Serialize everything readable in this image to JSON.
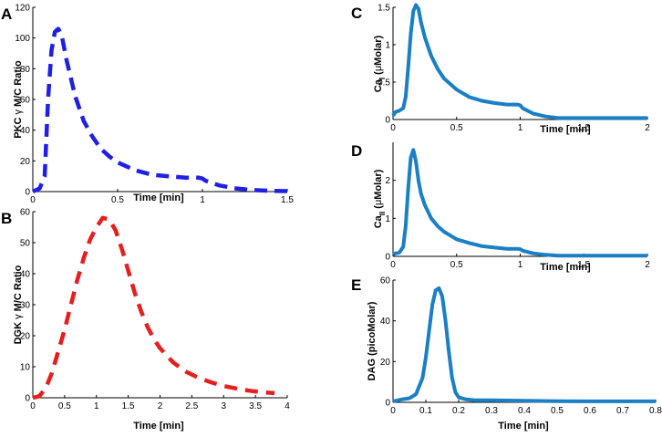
{
  "colors": {
    "blue_dash": "#1f1fe6",
    "red_dash": "#e61e1e",
    "solid": "#1a7fc4"
  },
  "chart_data": [
    {
      "panel": "A",
      "type": "line",
      "line_style": "dashed",
      "color": "#1f1fe6",
      "xlabel": "Time [min]",
      "ylabel_parts": [
        "PKC ",
        "γ",
        " M/C Ratio"
      ],
      "xlim": [
        0,
        1.5
      ],
      "ylim": [
        0,
        120
      ],
      "xticks": [
        0,
        0.5,
        1,
        1.5
      ],
      "xtick_labels": [
        "0",
        "0.5",
        "1",
        "1.5"
      ],
      "yticks": [
        0,
        20,
        40,
        60,
        80,
        100,
        120
      ],
      "ytick_labels": [
        "0",
        "20",
        "40",
        "60",
        "80",
        "100",
        "120"
      ],
      "x": [
        0,
        0.04,
        0.07,
        0.09,
        0.11,
        0.13,
        0.15,
        0.17,
        0.2,
        0.25,
        0.3,
        0.35,
        0.4,
        0.45,
        0.5,
        0.6,
        0.7,
        0.8,
        0.9,
        0.98,
        1.0,
        1.02,
        1.1,
        1.2,
        1.3,
        1.4,
        1.5
      ],
      "y": [
        0,
        2,
        10,
        60,
        92,
        104,
        106,
        102,
        85,
        62,
        46,
        36,
        28,
        23,
        19,
        14,
        11,
        10,
        9,
        9,
        8.5,
        7,
        4,
        2,
        1,
        0.5,
        0.3
      ]
    },
    {
      "panel": "B",
      "type": "line",
      "line_style": "dashed",
      "color": "#e61e1e",
      "xlabel": "Time [min]",
      "ylabel_parts": [
        "DGK ",
        "γ",
        " M/C Ratio"
      ],
      "xlim": [
        0,
        4
      ],
      "ylim": [
        0,
        60
      ],
      "xticks": [
        0,
        0.5,
        1,
        1.5,
        2,
        2.5,
        3,
        3.5,
        4
      ],
      "xtick_labels": [
        "0",
        "0.5",
        "1",
        "1.5",
        "2",
        "2.5",
        "3",
        "3.5",
        "4"
      ],
      "yticks": [
        0,
        10,
        20,
        30,
        40,
        50,
        60
      ],
      "ytick_labels": [
        "0",
        "10",
        "20",
        "30",
        "40",
        "50",
        "60"
      ],
      "x": [
        0,
        0.1,
        0.2,
        0.3,
        0.4,
        0.5,
        0.6,
        0.7,
        0.8,
        0.9,
        1.0,
        1.1,
        1.2,
        1.3,
        1.4,
        1.5,
        1.6,
        1.7,
        1.8,
        1.9,
        2.0,
        2.2,
        2.4,
        2.6,
        2.8,
        3.0,
        3.2,
        3.4,
        3.6,
        3.8
      ],
      "y": [
        0,
        0.5,
        3,
        8,
        15,
        22,
        30,
        38,
        45,
        51,
        55,
        58,
        57.5,
        54,
        48,
        41,
        34,
        28,
        23,
        19,
        16,
        11.5,
        8.5,
        6.5,
        5,
        3.8,
        3,
        2.3,
        1.8,
        1.5
      ]
    },
    {
      "panel": "C",
      "type": "line",
      "line_style": "solid",
      "color": "#1a7fc4",
      "xlabel": "Time [min]",
      "ylabel_parts": [
        "Ca",
        "I",
        " (",
        "μ",
        "Molar)"
      ],
      "xlim": [
        0,
        2
      ],
      "ylim": [
        0,
        1.5
      ],
      "xticks": [
        0,
        0.5,
        1,
        1.5,
        2
      ],
      "xtick_labels": [
        "0",
        "0.5",
        "1",
        "1.5",
        "2"
      ],
      "yticks": [
        0,
        0.5,
        1,
        1.5
      ],
      "ytick_labels": [
        "0",
        "0.5",
        "1",
        "1.5"
      ],
      "x": [
        0,
        0.02,
        0.05,
        0.08,
        0.1,
        0.12,
        0.14,
        0.16,
        0.18,
        0.2,
        0.22,
        0.25,
        0.3,
        0.35,
        0.4,
        0.5,
        0.6,
        0.7,
        0.8,
        0.9,
        0.98,
        1.0,
        1.02,
        1.1,
        1.2,
        1.3,
        1.5,
        1.7,
        1.9,
        2.0
      ],
      "y": [
        0.05,
        0.1,
        0.12,
        0.15,
        0.3,
        0.7,
        1.15,
        1.45,
        1.53,
        1.48,
        1.3,
        1.1,
        0.85,
        0.68,
        0.55,
        0.4,
        0.3,
        0.25,
        0.22,
        0.2,
        0.2,
        0.19,
        0.15,
        0.08,
        0.04,
        0.02,
        0.02,
        0.02,
        0.02,
        0.02
      ]
    },
    {
      "panel": "D",
      "type": "line",
      "line_style": "solid",
      "color": "#1a7fc4",
      "xlabel": "Time [min]",
      "ylabel_parts": [
        "Ca",
        "II",
        " (",
        "μ",
        "Molar)"
      ],
      "xlim": [
        0,
        2
      ],
      "ylim": [
        0,
        3
      ],
      "xticks": [
        0,
        0.5,
        1,
        1.5,
        2
      ],
      "xtick_labels": [
        "0",
        "0.5",
        "1",
        "1.5",
        "2"
      ],
      "yticks": [
        0,
        1,
        2
      ],
      "ytick_labels": [
        "0",
        "1",
        "2"
      ],
      "x": [
        0,
        0.02,
        0.05,
        0.08,
        0.1,
        0.12,
        0.14,
        0.16,
        0.18,
        0.2,
        0.22,
        0.25,
        0.3,
        0.35,
        0.4,
        0.5,
        0.6,
        0.7,
        0.8,
        0.9,
        0.98,
        1.0,
        1.02,
        1.1,
        1.2,
        1.3,
        1.5,
        1.7,
        1.9,
        2.0
      ],
      "y": [
        0.05,
        0.08,
        0.1,
        0.25,
        0.8,
        1.8,
        2.6,
        2.8,
        2.5,
        2.0,
        1.65,
        1.35,
        1.0,
        0.8,
        0.65,
        0.45,
        0.35,
        0.27,
        0.23,
        0.2,
        0.2,
        0.19,
        0.15,
        0.08,
        0.04,
        0.02,
        0.02,
        0.02,
        0.02,
        0.02
      ]
    },
    {
      "panel": "E",
      "type": "line",
      "line_style": "solid",
      "color": "#1a7fc4",
      "xlabel": "Time [min]",
      "ylabel_parts": [
        "DAG (picoMolar)"
      ],
      "xlim": [
        0,
        0.8
      ],
      "ylim": [
        0,
        60
      ],
      "xticks": [
        0,
        0.1,
        0.2,
        0.3,
        0.4,
        0.5,
        0.6,
        0.7,
        0.8
      ],
      "xtick_labels": [
        "0",
        "0.1",
        "0.2",
        "0.3",
        "0.4",
        "0.5",
        "0.6",
        "0.7",
        "0.8"
      ],
      "yticks": [
        0,
        20,
        40,
        60
      ],
      "ytick_labels": [
        "0",
        "20",
        "40",
        "60"
      ],
      "x": [
        0,
        0.03,
        0.05,
        0.07,
        0.09,
        0.1,
        0.11,
        0.12,
        0.13,
        0.14,
        0.15,
        0.16,
        0.17,
        0.18,
        0.19,
        0.2,
        0.22,
        0.25,
        0.3,
        0.4,
        0.5,
        0.6,
        0.7,
        0.8
      ],
      "y": [
        0.5,
        1.5,
        2,
        4,
        12,
        22,
        35,
        48,
        55,
        56,
        52,
        40,
        25,
        12,
        5,
        2.5,
        1.5,
        1,
        1,
        0.8,
        0.6,
        0.5,
        0.5,
        0.5
      ]
    }
  ]
}
